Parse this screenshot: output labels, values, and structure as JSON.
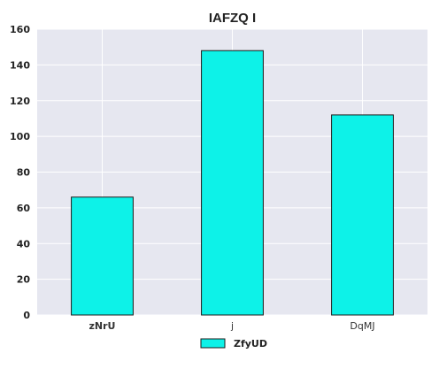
{
  "chart_data": {
    "type": "bar",
    "title": "IAFZQ I",
    "xlabel": "",
    "ylabel": "",
    "categories": [
      "zNrU",
      "j",
      "DqMJ"
    ],
    "series": [
      {
        "name": "ZfyUD",
        "values": [
          66,
          148,
          112
        ]
      }
    ],
    "ylim": [
      0,
      160
    ],
    "yticks": [
      0,
      20,
      40,
      60,
      80,
      100,
      120,
      140,
      160
    ],
    "grid": true,
    "legend": "bottom-center",
    "colors": {
      "bar_fill": "#0df2e8",
      "bar_stroke": "#1a1a1a",
      "plot_background": "#e6e7f0",
      "grid": "#ffffff"
    }
  }
}
